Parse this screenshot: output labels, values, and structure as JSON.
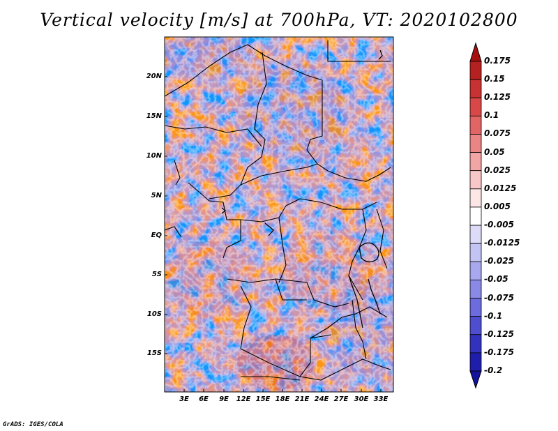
{
  "title": "Vertical velocity [m/s] at 700hPa, VT: 2020102800",
  "credit": "GrADS: IGES/COLA",
  "map": {
    "lat_labels": [
      "20N",
      "15N",
      "10N",
      "5N",
      "EQ",
      "5S",
      "10S",
      "15S"
    ],
    "lon_labels": [
      "3E",
      "6E",
      "9E",
      "12E",
      "15E",
      "18E",
      "21E",
      "24E",
      "27E",
      "30E",
      "33E"
    ],
    "field": "vertical velocity, 700hPa"
  },
  "colorbar": {
    "labels": [
      "0.175",
      "0.15",
      "0.125",
      "0.1",
      "0.075",
      "0.05",
      "0.025",
      "0.0125",
      "0.005",
      "-0.005",
      "-0.0125",
      "-0.025",
      "-0.05",
      "-0.075",
      "-0.1",
      "-0.125",
      "-0.175",
      "-0.2"
    ],
    "colors": [
      "#a50f0f",
      "#b52020",
      "#c83232",
      "#d94848",
      "#e26565",
      "#ea8585",
      "#f2a5a5",
      "#f8c8c8",
      "#fce6e6",
      "#ffffff",
      "#dcdcf8",
      "#c4c4f4",
      "#a8a8ee",
      "#8a8ae6",
      "#6c6cdc",
      "#4e4ece",
      "#3232bc",
      "#1e1eaa",
      "#12129a"
    ]
  },
  "colors": {
    "positive": "#d23c3c",
    "negative": "#5050d8",
    "border": "#000000"
  }
}
